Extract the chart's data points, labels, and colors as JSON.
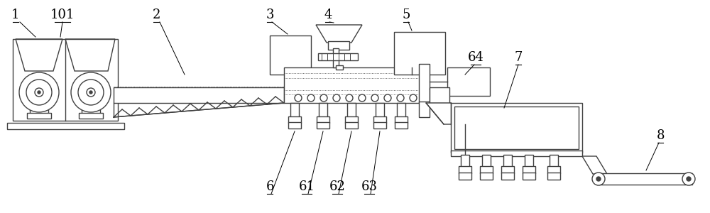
{
  "bg_color": "#ffffff",
  "lc": "#404040",
  "lw": 1.0,
  "fig_width": 10.0,
  "fig_height": 3.0
}
